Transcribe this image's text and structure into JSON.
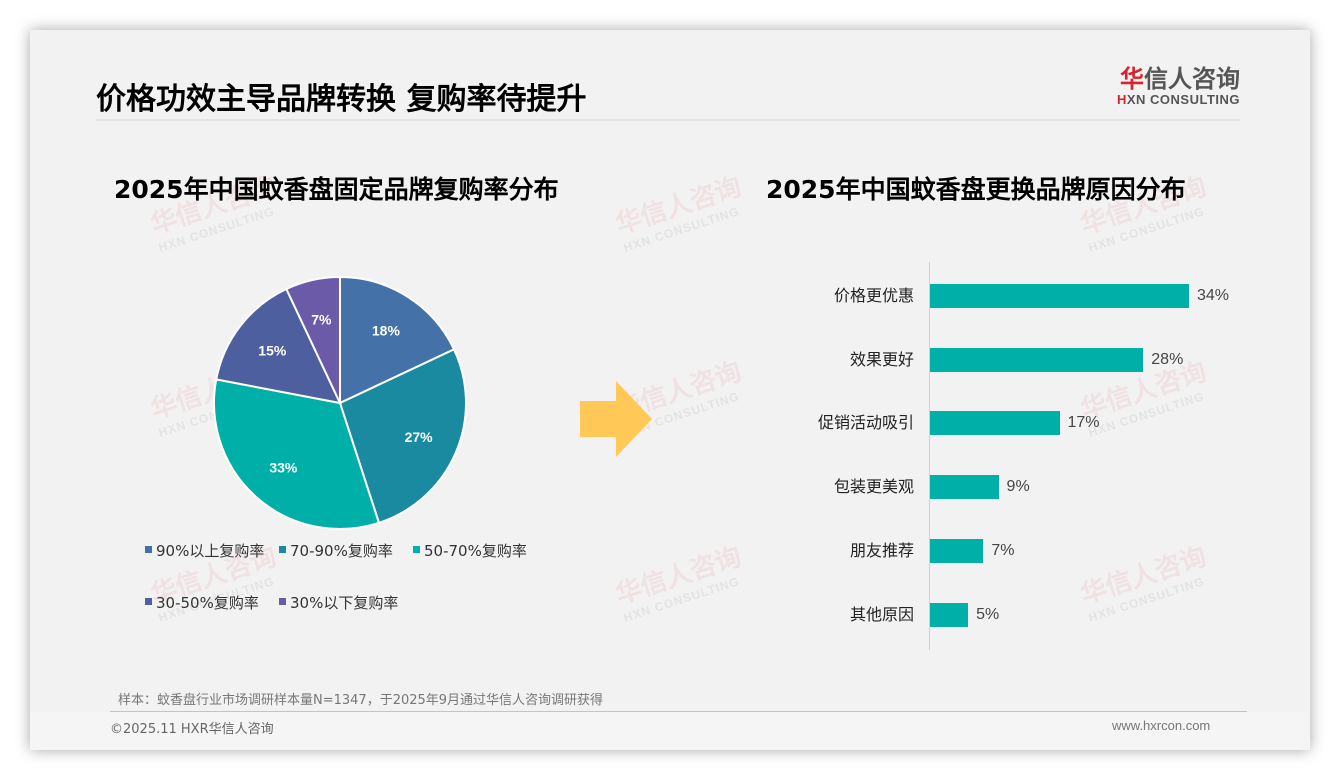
{
  "header": {
    "title": "价格功效主导品牌转换 复购率待提升",
    "logo": {
      "cn_red": "华",
      "cn_rest": "信人咨询",
      "en_red": "H",
      "en_rest": "XN CONSULTING"
    }
  },
  "watermark": {
    "cn": "华信人咨询",
    "en": "HXN CONSULTING"
  },
  "colors": {
    "background": "#f2f2f2",
    "bar": "#00b0a8",
    "arrow": "#ffc857",
    "logo_red": "#d7232b"
  },
  "left_chart": {
    "title": "2025年中国蚊香盘固定品牌复购率分布"
  },
  "right_chart": {
    "title": "2025年中国蚊香盘更换品牌原因分布"
  },
  "legend": [
    {
      "label": "90%以上复购率",
      "color": "#4472a8"
    },
    {
      "label": "70-90%复购率",
      "color": "#1a8aa0"
    },
    {
      "label": "50-70%复购率",
      "color": "#00b0a8"
    },
    {
      "label": "30-50%复购率",
      "color": "#4e5fa0"
    },
    {
      "label": "30%以下复购率",
      "color": "#6a5aa8"
    }
  ],
  "chart_data": [
    {
      "type": "pie",
      "title": "2025年中国蚊香盘固定品牌复购率分布",
      "categories": [
        "90%以上复购率",
        "70-90%复购率",
        "50-70%复购率",
        "30-50%复购率",
        "30%以下复购率"
      ],
      "values": [
        18,
        27,
        33,
        15,
        7
      ],
      "labels": [
        "18%",
        "27%",
        "33%",
        "15%",
        "7%"
      ],
      "colors": [
        "#4472a8",
        "#1a8aa0",
        "#00b0a8",
        "#4e5fa0",
        "#6a5aa8"
      ],
      "start_angle": "12 o'clock, clockwise",
      "legend_position": "bottom"
    },
    {
      "type": "bar",
      "orientation": "horizontal",
      "title": "2025年中国蚊香盘更换品牌原因分布",
      "categories": [
        "价格更优惠",
        "效果更好",
        "促销活动吸引",
        "包装更美观",
        "朋友推荐",
        "其他原因"
      ],
      "values": [
        34,
        28,
        17,
        9,
        7,
        5
      ],
      "labels": [
        "34%",
        "28%",
        "17%",
        "9%",
        "7%",
        "5%"
      ],
      "color": "#00b0a8",
      "xlabel": "",
      "ylabel": "",
      "grid": false
    }
  ],
  "footer": {
    "note": "样本：蚊香盘行业市场调研样本量N=1347，于2025年9月通过华信人咨询调研获得",
    "copyright": "©2025.11 HXR华信人咨询",
    "website": "www.hxrcon.com"
  }
}
